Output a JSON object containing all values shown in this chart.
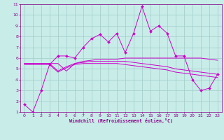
{
  "xlabel": "Windchill (Refroidissement éolien,°C)",
  "bg_color": "#c8ece8",
  "grid_color": "#a0ccc8",
  "line_color": "#cc00cc",
  "xlim": [
    -0.5,
    23.5
  ],
  "ylim": [
    1,
    11
  ],
  "xticks": [
    0,
    1,
    2,
    3,
    4,
    5,
    6,
    7,
    8,
    9,
    10,
    11,
    12,
    13,
    14,
    15,
    16,
    17,
    18,
    19,
    20,
    21,
    22,
    23
  ],
  "yticks": [
    1,
    2,
    3,
    4,
    5,
    6,
    7,
    8,
    9,
    10,
    11
  ],
  "line1_x": [
    0,
    1,
    2,
    3,
    4,
    5,
    6,
    7,
    8,
    9,
    10,
    11,
    12,
    13,
    14,
    15,
    16,
    17,
    18,
    19,
    20,
    21,
    22,
    23
  ],
  "line1_y": [
    1.7,
    1.0,
    3.0,
    5.4,
    6.2,
    6.2,
    6.0,
    7.0,
    7.8,
    8.2,
    7.5,
    8.3,
    6.5,
    8.3,
    10.8,
    8.5,
    9.0,
    8.3,
    6.2,
    6.2,
    4.0,
    3.0,
    3.2,
    4.5
  ],
  "line2_x": [
    0,
    1,
    2,
    3,
    4,
    5,
    6,
    7,
    8,
    9,
    10,
    11,
    12,
    13,
    14,
    15,
    16,
    17,
    18,
    19,
    20,
    21,
    22,
    23
  ],
  "line2_y": [
    5.5,
    5.5,
    5.5,
    5.5,
    5.5,
    4.8,
    5.5,
    5.7,
    5.8,
    5.9,
    5.9,
    5.9,
    6.0,
    6.0,
    6.0,
    6.0,
    6.0,
    6.0,
    6.0,
    6.0,
    6.0,
    6.0,
    5.9,
    5.8
  ],
  "line3_x": [
    0,
    1,
    2,
    3,
    4,
    5,
    6,
    7,
    8,
    9,
    10,
    11,
    12,
    13,
    14,
    15,
    16,
    17,
    18,
    19,
    20,
    21,
    22,
    23
  ],
  "line3_y": [
    5.5,
    5.5,
    5.5,
    5.5,
    4.8,
    5.2,
    5.5,
    5.6,
    5.7,
    5.7,
    5.7,
    5.7,
    5.7,
    5.6,
    5.5,
    5.4,
    5.3,
    5.2,
    5.0,
    4.9,
    4.8,
    4.7,
    4.6,
    4.5
  ],
  "line4_x": [
    0,
    1,
    2,
    3,
    4,
    5,
    6,
    7,
    8,
    9,
    10,
    11,
    12,
    13,
    14,
    15,
    16,
    17,
    18,
    19,
    20,
    21,
    22,
    23
  ],
  "line4_y": [
    5.4,
    5.4,
    5.4,
    5.4,
    4.7,
    5.1,
    5.4,
    5.5,
    5.5,
    5.5,
    5.5,
    5.5,
    5.4,
    5.3,
    5.2,
    5.1,
    5.0,
    4.9,
    4.7,
    4.6,
    4.5,
    4.4,
    4.3,
    4.2
  ]
}
